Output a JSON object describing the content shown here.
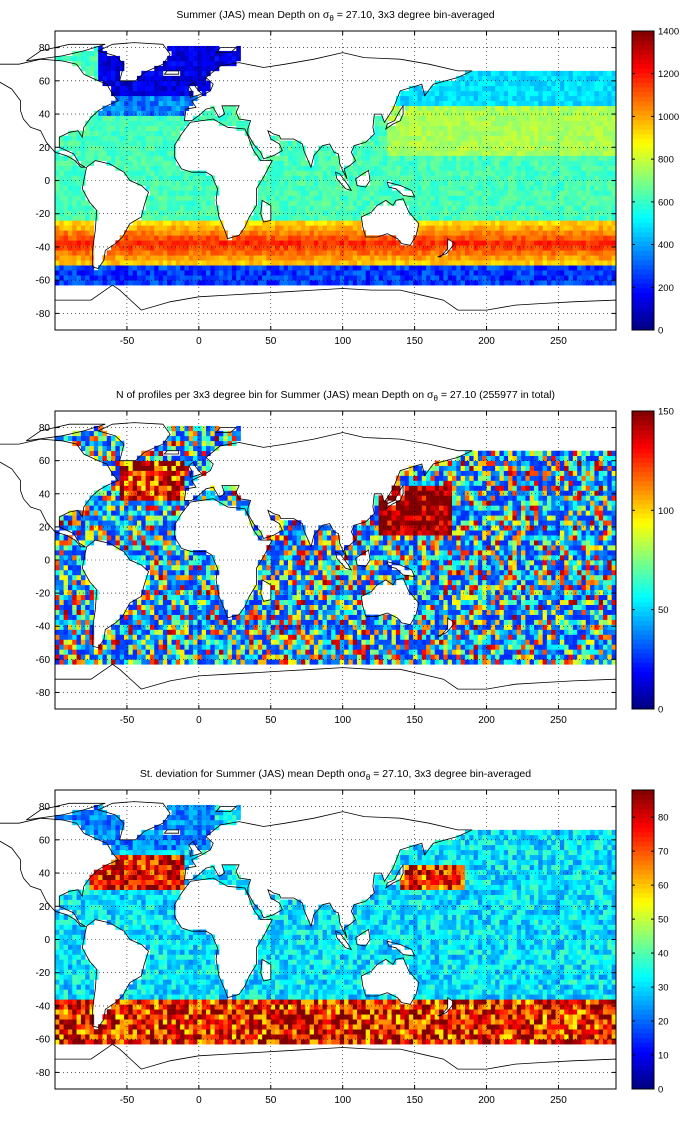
{
  "chart_data": [
    {
      "type": "heatmap",
      "title": "Summer (JAS) mean Depth on σθ = 27.10, 3x3 degree bin-averaged",
      "title_parts": [
        "Summer (JAS) mean Depth on ",
        "σ",
        "θ",
        " = 27.10, 3x3 degree bin-averaged"
      ],
      "x_ticks": [
        -50,
        0,
        50,
        100,
        150,
        200,
        250
      ],
      "y_ticks": [
        80,
        60,
        40,
        20,
        0,
        -20,
        -40,
        -60,
        -80
      ],
      "xlim": [
        -100,
        290
      ],
      "ylim": [
        -90,
        90
      ],
      "grid": true,
      "colorbar": {
        "ticks": [
          0,
          200,
          400,
          600,
          800,
          1000,
          1200,
          1400
        ],
        "range": [
          0,
          1400
        ],
        "colormap": "jet"
      },
      "field": "depth"
    },
    {
      "type": "heatmap",
      "title": "N of profiles per 3x3 degree bin for Summer (JAS) mean Depth on σθ = 27.10 (255977 in total)",
      "title_parts": [
        "N of profiles per 3x3 degree bin for Summer (JAS) mean Depth on ",
        "σ",
        "θ",
        " = 27.10 (255977 in total)"
      ],
      "x_ticks": [
        -50,
        0,
        50,
        100,
        150,
        200,
        250
      ],
      "y_ticks": [
        80,
        60,
        40,
        20,
        0,
        -20,
        -40,
        -60,
        -80
      ],
      "xlim": [
        -100,
        290
      ],
      "ylim": [
        -90,
        90
      ],
      "grid": true,
      "colorbar": {
        "ticks": [
          0,
          50,
          100,
          150
        ],
        "range": [
          0,
          150
        ],
        "colormap": "jet"
      },
      "field": "count"
    },
    {
      "type": "heatmap",
      "title": "St. deviation for Summer (JAS) mean Depth on σθ = 27.10, 3x3 degree bin-averaged",
      "title_parts": [
        "St. deviation for Summer (JAS) mean Depth on",
        "σ",
        "θ",
        " = 27.10, 3x3 degree bin-averaged"
      ],
      "x_ticks": [
        -50,
        0,
        50,
        100,
        150,
        200,
        250
      ],
      "y_ticks": [
        80,
        60,
        40,
        20,
        0,
        -20,
        -40,
        -60,
        -80
      ],
      "xlim": [
        -100,
        290
      ],
      "ylim": [
        -90,
        90
      ],
      "grid": true,
      "colorbar": {
        "ticks": [
          0,
          10,
          20,
          30,
          40,
          50,
          60,
          70,
          80
        ],
        "range": [
          0,
          88
        ],
        "colormap": "jet"
      },
      "field": "std"
    }
  ]
}
